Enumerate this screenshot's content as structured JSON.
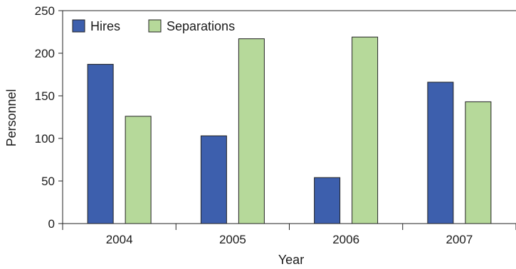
{
  "chart_data": {
    "type": "bar",
    "title": "",
    "xlabel": "Year",
    "ylabel": "Personnel",
    "categories": [
      "2004",
      "2005",
      "2006",
      "2007"
    ],
    "series": [
      {
        "name": "Hires",
        "values": [
          187,
          103,
          54,
          166
        ],
        "color": "#3d5fad"
      },
      {
        "name": "Separations",
        "values": [
          126,
          217,
          219,
          143
        ],
        "color": "#b6d99a"
      }
    ],
    "ylim": [
      0,
      250
    ],
    "yticks": [
      "0",
      "50",
      "100",
      "150",
      "200",
      "250"
    ],
    "grid": false,
    "legend": "top-left"
  }
}
